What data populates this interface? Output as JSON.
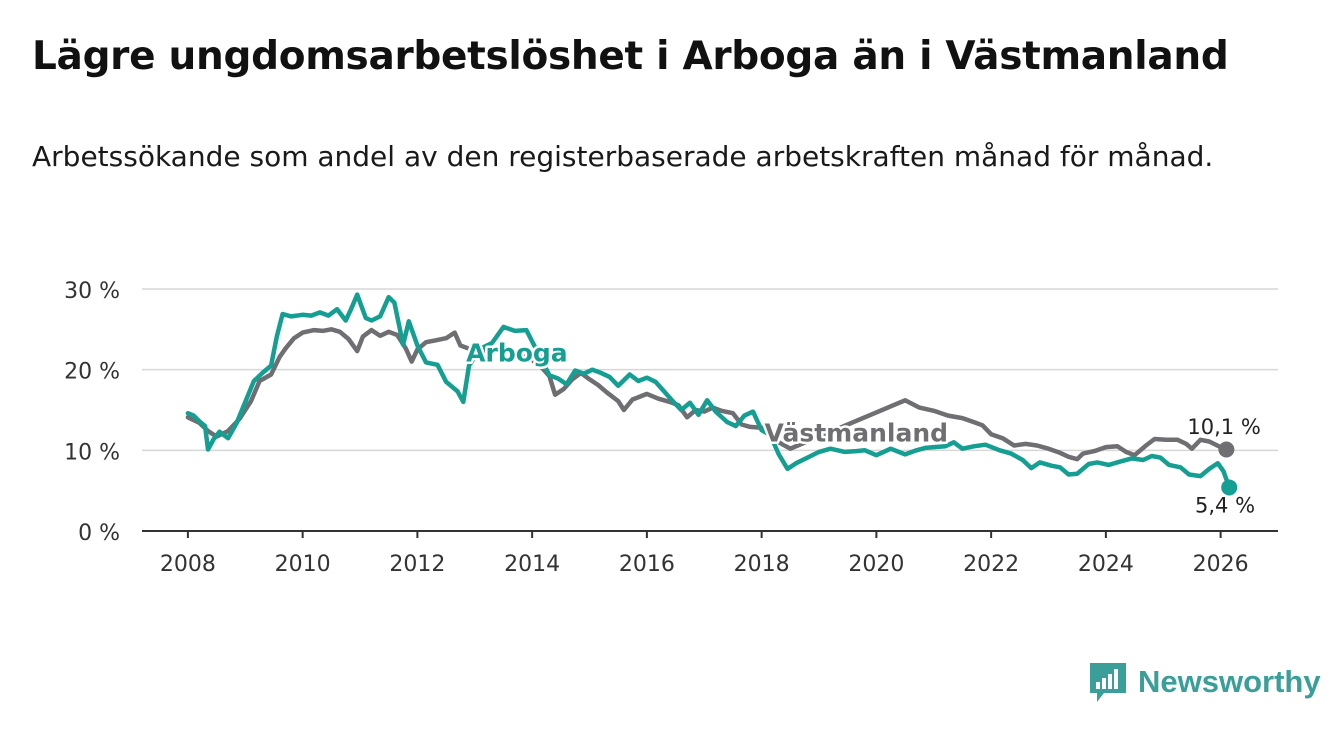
{
  "header": {
    "title": "Lägre ungdomsarbetslöshet i Arboga än i Västmanland",
    "subtitle": "Arbetssökande som andel av den registerbaserade arbetskraften månad för månad."
  },
  "brand": {
    "name": "Newsworthy",
    "color": "#3a9e99"
  },
  "chart_data": {
    "type": "line",
    "title": "Lägre ungdomsarbetslöshet i Arboga än i Västmanland",
    "subtitle": "Arbetssökande som andel av den registerbaserade arbetskraften månad för månad.",
    "xlabel": "",
    "ylabel": "",
    "xlim": [
      2007.2,
      2027.0
    ],
    "ylim": [
      0,
      30
    ],
    "grid": true,
    "x_ticks": [
      2008,
      2010,
      2012,
      2014,
      2016,
      2018,
      2020,
      2022,
      2024,
      2026
    ],
    "x_tick_labels": [
      "2008",
      "2010",
      "2012",
      "2014",
      "2016",
      "2018",
      "2020",
      "2022",
      "2024",
      "2026"
    ],
    "y_ticks": [
      0,
      10,
      20,
      30
    ],
    "y_tick_labels": [
      "0 %",
      "10 %",
      "20 %",
      "30 %"
    ],
    "series": [
      {
        "name": "Västmanland",
        "color": "#6e6e73",
        "label": "Västmanland",
        "end_label": "10,1 %",
        "points": [
          [
            2008.0,
            14.1
          ],
          [
            2008.2,
            13.4
          ],
          [
            2008.35,
            12.4
          ],
          [
            2008.5,
            11.7
          ],
          [
            2008.7,
            12.4
          ],
          [
            2008.9,
            13.9
          ],
          [
            2009.1,
            16.1
          ],
          [
            2009.25,
            18.6
          ],
          [
            2009.45,
            19.4
          ],
          [
            2009.6,
            21.6
          ],
          [
            2009.7,
            22.6
          ],
          [
            2009.85,
            23.9
          ],
          [
            2010.0,
            24.6
          ],
          [
            2010.2,
            24.9
          ],
          [
            2010.35,
            24.8
          ],
          [
            2010.5,
            25.0
          ],
          [
            2010.65,
            24.7
          ],
          [
            2010.8,
            23.8
          ],
          [
            2010.95,
            22.3
          ],
          [
            2011.05,
            24.1
          ],
          [
            2011.2,
            24.9
          ],
          [
            2011.35,
            24.2
          ],
          [
            2011.5,
            24.7
          ],
          [
            2011.65,
            24.3
          ],
          [
            2011.8,
            22.6
          ],
          [
            2011.9,
            21.0
          ],
          [
            2012.0,
            22.5
          ],
          [
            2012.15,
            23.4
          ],
          [
            2012.3,
            23.6
          ],
          [
            2012.5,
            23.9
          ],
          [
            2012.65,
            24.6
          ],
          [
            2012.75,
            23.0
          ],
          [
            2012.9,
            22.6
          ],
          [
            2013.05,
            21.4
          ],
          [
            2013.2,
            22.4
          ],
          [
            2013.5,
            22.5
          ],
          [
            2013.75,
            21.9
          ],
          [
            2014.0,
            21.2
          ],
          [
            2014.15,
            20.4
          ],
          [
            2014.3,
            19.2
          ],
          [
            2014.4,
            16.9
          ],
          [
            2014.55,
            17.6
          ],
          [
            2014.7,
            18.8
          ],
          [
            2014.85,
            19.6
          ],
          [
            2015.0,
            18.8
          ],
          [
            2015.15,
            18.1
          ],
          [
            2015.3,
            17.2
          ],
          [
            2015.5,
            16.1
          ],
          [
            2015.6,
            15.0
          ],
          [
            2015.75,
            16.3
          ],
          [
            2016.0,
            17.0
          ],
          [
            2016.2,
            16.4
          ],
          [
            2016.4,
            16.0
          ],
          [
            2016.55,
            15.6
          ],
          [
            2016.7,
            14.1
          ],
          [
            2016.85,
            15.0
          ],
          [
            2017.0,
            14.8
          ],
          [
            2017.15,
            15.3
          ],
          [
            2017.3,
            14.9
          ],
          [
            2017.5,
            14.6
          ],
          [
            2017.65,
            13.2
          ],
          [
            2017.8,
            12.9
          ],
          [
            2018.0,
            12.8
          ],
          [
            2018.15,
            12.1
          ],
          [
            2018.3,
            11.0
          ],
          [
            2018.5,
            10.2
          ],
          [
            2020.5,
            16.2
          ],
          [
            2020.75,
            15.3
          ],
          [
            2021.0,
            14.9
          ],
          [
            2021.25,
            14.3
          ],
          [
            2021.5,
            14.0
          ],
          [
            2021.7,
            13.5
          ],
          [
            2021.85,
            13.1
          ],
          [
            2022.0,
            12.0
          ],
          [
            2022.2,
            11.5
          ],
          [
            2022.4,
            10.6
          ],
          [
            2022.6,
            10.8
          ],
          [
            2022.8,
            10.6
          ],
          [
            2023.0,
            10.2
          ],
          [
            2023.2,
            9.7
          ],
          [
            2023.35,
            9.2
          ],
          [
            2023.5,
            8.9
          ],
          [
            2023.6,
            9.6
          ],
          [
            2023.8,
            9.9
          ],
          [
            2024.0,
            10.4
          ],
          [
            2024.2,
            10.5
          ],
          [
            2024.35,
            9.8
          ],
          [
            2024.5,
            9.4
          ],
          [
            2024.7,
            10.6
          ],
          [
            2024.85,
            11.4
          ],
          [
            2025.05,
            11.3
          ],
          [
            2025.25,
            11.3
          ],
          [
            2025.4,
            10.8
          ],
          [
            2025.5,
            10.2
          ],
          [
            2025.65,
            11.3
          ],
          [
            2025.8,
            11.1
          ],
          [
            2026.0,
            10.4
          ],
          [
            2026.1,
            10.1
          ]
        ]
      },
      {
        "name": "Arboga",
        "color": "#159e92",
        "label": "Arboga",
        "end_label": "5,4 %",
        "points": [
          [
            2008.0,
            14.6
          ],
          [
            2008.1,
            14.3
          ],
          [
            2008.2,
            13.6
          ],
          [
            2008.3,
            13.0
          ],
          [
            2008.35,
            10.1
          ],
          [
            2008.45,
            11.4
          ],
          [
            2008.55,
            12.3
          ],
          [
            2008.7,
            11.5
          ],
          [
            2008.85,
            13.4
          ],
          [
            2009.0,
            16.0
          ],
          [
            2009.15,
            18.6
          ],
          [
            2009.3,
            19.6
          ],
          [
            2009.45,
            20.5
          ],
          [
            2009.55,
            24.1
          ],
          [
            2009.65,
            26.9
          ],
          [
            2009.8,
            26.6
          ],
          [
            2010.0,
            26.8
          ],
          [
            2010.15,
            26.7
          ],
          [
            2010.3,
            27.1
          ],
          [
            2010.45,
            26.7
          ],
          [
            2010.6,
            27.5
          ],
          [
            2010.75,
            26.1
          ],
          [
            2010.85,
            27.6
          ],
          [
            2010.95,
            29.3
          ],
          [
            2011.1,
            26.4
          ],
          [
            2011.2,
            26.1
          ],
          [
            2011.35,
            26.6
          ],
          [
            2011.5,
            29.0
          ],
          [
            2011.6,
            28.3
          ],
          [
            2011.75,
            23.1
          ],
          [
            2011.85,
            26.0
          ],
          [
            2012.0,
            23.0
          ],
          [
            2012.15,
            20.9
          ],
          [
            2012.35,
            20.6
          ],
          [
            2012.5,
            18.5
          ],
          [
            2012.7,
            17.3
          ],
          [
            2012.8,
            16.0
          ],
          [
            2012.9,
            20.5
          ],
          [
            2013.1,
            22.6
          ],
          [
            2013.3,
            23.3
          ],
          [
            2013.5,
            25.3
          ],
          [
            2013.7,
            24.8
          ],
          [
            2013.9,
            24.9
          ],
          [
            2014.3,
            19.3
          ],
          [
            2014.45,
            18.9
          ],
          [
            2014.6,
            18.2
          ],
          [
            2014.75,
            19.9
          ],
          [
            2014.9,
            19.5
          ],
          [
            2015.05,
            20.0
          ],
          [
            2015.2,
            19.6
          ],
          [
            2015.35,
            19.1
          ],
          [
            2015.5,
            18.0
          ],
          [
            2015.7,
            19.4
          ],
          [
            2015.85,
            18.6
          ],
          [
            2016.0,
            19.0
          ],
          [
            2016.15,
            18.5
          ],
          [
            2016.3,
            17.3
          ],
          [
            2016.45,
            16.1
          ],
          [
            2016.6,
            15.0
          ],
          [
            2016.75,
            15.9
          ],
          [
            2016.9,
            14.4
          ],
          [
            2017.05,
            16.2
          ],
          [
            2017.2,
            14.8
          ],
          [
            2017.4,
            13.5
          ],
          [
            2017.55,
            13.0
          ],
          [
            2017.7,
            14.3
          ],
          [
            2017.85,
            14.8
          ],
          [
            2018.0,
            12.5
          ],
          [
            2018.15,
            11.9
          ],
          [
            2018.3,
            9.5
          ],
          [
            2018.45,
            7.7
          ],
          [
            2018.6,
            8.4
          ],
          [
            2018.8,
            9.1
          ],
          [
            2019.0,
            9.8
          ],
          [
            2019.2,
            10.2
          ],
          [
            2019.45,
            9.8
          ],
          [
            2019.65,
            9.9
          ],
          [
            2019.8,
            10.0
          ],
          [
            2020.0,
            9.4
          ],
          [
            2020.25,
            10.2
          ],
          [
            2020.5,
            9.5
          ],
          [
            2020.7,
            10.0
          ],
          [
            2020.85,
            10.3
          ],
          [
            2021.2,
            10.5
          ],
          [
            2021.35,
            11.0
          ],
          [
            2021.5,
            10.2
          ],
          [
            2021.7,
            10.5
          ],
          [
            2021.9,
            10.7
          ],
          [
            2022.15,
            10.0
          ],
          [
            2022.35,
            9.6
          ],
          [
            2022.55,
            8.8
          ],
          [
            2022.7,
            7.8
          ],
          [
            2022.85,
            8.5
          ],
          [
            2023.05,
            8.1
          ],
          [
            2023.2,
            7.9
          ],
          [
            2023.35,
            7.0
          ],
          [
            2023.5,
            7.1
          ],
          [
            2023.7,
            8.3
          ],
          [
            2023.85,
            8.5
          ],
          [
            2024.05,
            8.2
          ],
          [
            2024.25,
            8.6
          ],
          [
            2024.45,
            9.0
          ],
          [
            2024.65,
            8.8
          ],
          [
            2024.8,
            9.3
          ],
          [
            2024.95,
            9.1
          ],
          [
            2025.1,
            8.2
          ],
          [
            2025.3,
            7.9
          ],
          [
            2025.45,
            7.0
          ],
          [
            2025.65,
            6.8
          ],
          [
            2025.8,
            7.7
          ],
          [
            2025.95,
            8.4
          ],
          [
            2026.05,
            7.4
          ],
          [
            2026.15,
            5.4
          ]
        ]
      }
    ],
    "annotations": [
      {
        "text": "Arboga",
        "series": "Arboga"
      },
      {
        "text": "Västmanland",
        "series": "Västmanland"
      },
      {
        "text": "10,1 %",
        "series": "Västmanland"
      },
      {
        "text": "5,4 %",
        "series": "Arboga"
      }
    ]
  }
}
